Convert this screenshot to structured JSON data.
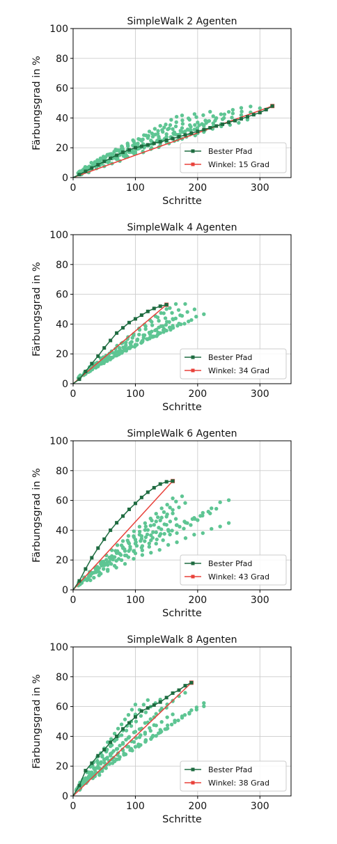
{
  "colors": {
    "best_path": "#1e6b40",
    "runs": "#5ec593",
    "angle_line": "#e8413a",
    "grid": "#cccccc"
  },
  "chart_data": [
    {
      "type": "scatter",
      "title": "SimpleWalk 2 Agenten",
      "xlabel": "Schritte",
      "ylabel": "Färbungsgrad in %",
      "xlim": [
        0,
        350
      ],
      "ylim": [
        0,
        100
      ],
      "xticks": [
        0,
        100,
        200,
        300
      ],
      "yticks": [
        0,
        20,
        40,
        60,
        80,
        100
      ],
      "grid": true,
      "legend_position": "lower-right",
      "legend": [
        "Bester Pfad",
        "Winkel: 15 Grad"
      ],
      "best_path": {
        "name": "Bester Pfad",
        "x": [
          10,
          20,
          30,
          40,
          50,
          60,
          70,
          80,
          90,
          100,
          110,
          120,
          130,
          140,
          150,
          160,
          170,
          180,
          190,
          200,
          210,
          220,
          230,
          240,
          250,
          260,
          270,
          280,
          290,
          300,
          310,
          320
        ],
        "y": [
          2.0,
          4.2,
          6.4,
          8.6,
          10.8,
          13.0,
          15.0,
          17.0,
          18.6,
          20.0,
          21.0,
          22.0,
          23.0,
          24.0,
          25.0,
          26.2,
          27.4,
          28.6,
          29.8,
          31.0,
          32.2,
          33.4,
          34.6,
          35.8,
          37.0,
          38.2,
          39.4,
          40.8,
          42.2,
          43.6,
          45.6,
          48.0
        ]
      },
      "angle_line": {
        "name": "Winkel: 15 Grad",
        "x": [
          0,
          320
        ],
        "y": [
          0,
          48
        ]
      },
      "runs": [
        {
          "n": 20,
          "x_end": 175,
          "y_end": 42
        },
        {
          "n": 20,
          "x_end": 195,
          "y_end": 42
        },
        {
          "n": 20,
          "x_end": 220,
          "y_end": 44
        },
        {
          "n": 20,
          "x_end": 250,
          "y_end": 44
        },
        {
          "n": 20,
          "x_end": 270,
          "y_end": 47
        },
        {
          "n": 20,
          "x_end": 285,
          "y_end": 47
        },
        {
          "n": 20,
          "x_end": 300,
          "y_end": 46
        },
        {
          "n": 20,
          "x_end": 210,
          "y_end": 34
        },
        {
          "n": 20,
          "x_end": 250,
          "y_end": 37
        },
        {
          "n": 20,
          "x_end": 280,
          "y_end": 39
        },
        {
          "n": 20,
          "x_end": 230,
          "y_end": 40
        },
        {
          "n": 20,
          "x_end": 160,
          "y_end": 33
        }
      ]
    },
    {
      "type": "scatter",
      "title": "SimpleWalk 4 Agenten",
      "xlabel": "Schritte",
      "ylabel": "Färbungsgrad in %",
      "xlim": [
        0,
        350
      ],
      "ylim": [
        0,
        100
      ],
      "xticks": [
        0,
        100,
        200,
        300
      ],
      "yticks": [
        0,
        20,
        40,
        60,
        80,
        100
      ],
      "grid": true,
      "legend_position": "lower-right",
      "legend": [
        "Bester Pfad",
        "Winkel: 34 Grad"
      ],
      "best_path": {
        "name": "Bester Pfad",
        "x": [
          10,
          20,
          30,
          40,
          50,
          60,
          70,
          80,
          90,
          100,
          110,
          120,
          130,
          140,
          150
        ],
        "y": [
          3.0,
          8.2,
          13.5,
          18.5,
          24.0,
          29.0,
          34.0,
          37.5,
          41.0,
          43.5,
          46.0,
          48.5,
          50.5,
          52.0,
          53.0
        ]
      },
      "angle_line": {
        "name": "Winkel: 34 Grad",
        "x": [
          0,
          150
        ],
        "y": [
          0,
          53
        ]
      },
      "runs": [
        {
          "n": 17,
          "x_end": 150,
          "y_end": 50
        },
        {
          "n": 17,
          "x_end": 165,
          "y_end": 53
        },
        {
          "n": 17,
          "x_end": 180,
          "y_end": 53
        },
        {
          "n": 17,
          "x_end": 195,
          "y_end": 50
        },
        {
          "n": 17,
          "x_end": 210,
          "y_end": 47
        },
        {
          "n": 17,
          "x_end": 175,
          "y_end": 46
        },
        {
          "n": 17,
          "x_end": 160,
          "y_end": 43
        },
        {
          "n": 17,
          "x_end": 190,
          "y_end": 43
        },
        {
          "n": 17,
          "x_end": 170,
          "y_end": 40
        },
        {
          "n": 17,
          "x_end": 145,
          "y_end": 36
        },
        {
          "n": 17,
          "x_end": 155,
          "y_end": 38
        }
      ]
    },
    {
      "type": "scatter",
      "title": "SimpleWalk 6 Agenten",
      "xlabel": "Schritte",
      "ylabel": "Färbungsgrad in %",
      "xlim": [
        0,
        350
      ],
      "ylim": [
        0,
        100
      ],
      "xticks": [
        0,
        100,
        200,
        300
      ],
      "yticks": [
        0,
        20,
        40,
        60,
        80,
        100
      ],
      "grid": true,
      "legend_position": "lower-right",
      "legend": [
        "Bester Pfad",
        "Winkel: 43 Grad"
      ],
      "best_path": {
        "name": "Bester Pfad",
        "x": [
          10,
          20,
          30,
          40,
          50,
          60,
          70,
          80,
          90,
          100,
          110,
          120,
          130,
          140,
          150,
          160
        ],
        "y": [
          6.0,
          14.0,
          21.5,
          28.0,
          34.0,
          40.0,
          45.0,
          49.5,
          54.0,
          58.0,
          62.0,
          65.5,
          68.5,
          71.0,
          72.5,
          73.0
        ]
      },
      "angle_line": {
        "name": "Winkel: 43 Grad",
        "x": [
          0,
          160
        ],
        "y": [
          0,
          73
        ]
      },
      "runs": [
        {
          "n": 18,
          "x_end": 160,
          "y_end": 61
        },
        {
          "n": 18,
          "x_end": 175,
          "y_end": 62
        },
        {
          "n": 18,
          "x_end": 180,
          "y_end": 58
        },
        {
          "n": 18,
          "x_end": 160,
          "y_end": 54
        },
        {
          "n": 18,
          "x_end": 165,
          "y_end": 48
        },
        {
          "n": 18,
          "x_end": 250,
          "y_end": 61
        },
        {
          "n": 18,
          "x_end": 230,
          "y_end": 55
        },
        {
          "n": 18,
          "x_end": 220,
          "y_end": 52
        },
        {
          "n": 18,
          "x_end": 200,
          "y_end": 46
        },
        {
          "n": 18,
          "x_end": 250,
          "y_end": 45
        },
        {
          "n": 18,
          "x_end": 150,
          "y_end": 43
        }
      ]
    },
    {
      "type": "scatter",
      "title": "SimpleWalk 8 Agenten",
      "xlabel": "Schritte",
      "ylabel": "Färbungsgrad in %",
      "xlim": [
        0,
        350
      ],
      "ylim": [
        0,
        100
      ],
      "xticks": [
        0,
        100,
        200,
        300
      ],
      "yticks": [
        0,
        20,
        40,
        60,
        80,
        100
      ],
      "grid": true,
      "legend_position": "lower-right",
      "legend": [
        "Bester Pfad",
        "Winkel: 38 Grad"
      ],
      "best_path": {
        "name": "Bester Pfad",
        "x": [
          10,
          20,
          30,
          40,
          50,
          60,
          70,
          80,
          90,
          100,
          110,
          120,
          130,
          140,
          150,
          160,
          170,
          180,
          190
        ],
        "y": [
          7.0,
          17.0,
          22.0,
          27.0,
          31.0,
          36.0,
          40.0,
          45.0,
          49.0,
          53.0,
          57.0,
          59.0,
          61.0,
          63.0,
          66.0,
          69.0,
          71.0,
          74.0,
          76.0
        ]
      },
      "angle_line": {
        "name": "Winkel: 38 Grad",
        "x": [
          0,
          190
        ],
        "y": [
          0,
          76
        ]
      },
      "runs": [
        {
          "n": 18,
          "x_end": 100,
          "y_end": 61
        },
        {
          "n": 18,
          "x_end": 120,
          "y_end": 64
        },
        {
          "n": 18,
          "x_end": 140,
          "y_end": 65
        },
        {
          "n": 18,
          "x_end": 160,
          "y_end": 64
        },
        {
          "n": 18,
          "x_end": 180,
          "y_end": 70
        },
        {
          "n": 18,
          "x_end": 210,
          "y_end": 62
        },
        {
          "n": 18,
          "x_end": 210,
          "y_end": 60
        },
        {
          "n": 18,
          "x_end": 190,
          "y_end": 57
        },
        {
          "n": 18,
          "x_end": 150,
          "y_end": 45
        },
        {
          "n": 18,
          "x_end": 130,
          "y_end": 47
        },
        {
          "n": 18,
          "x_end": 90,
          "y_end": 40
        },
        {
          "n": 18,
          "x_end": 160,
          "y_end": 55
        }
      ]
    }
  ]
}
